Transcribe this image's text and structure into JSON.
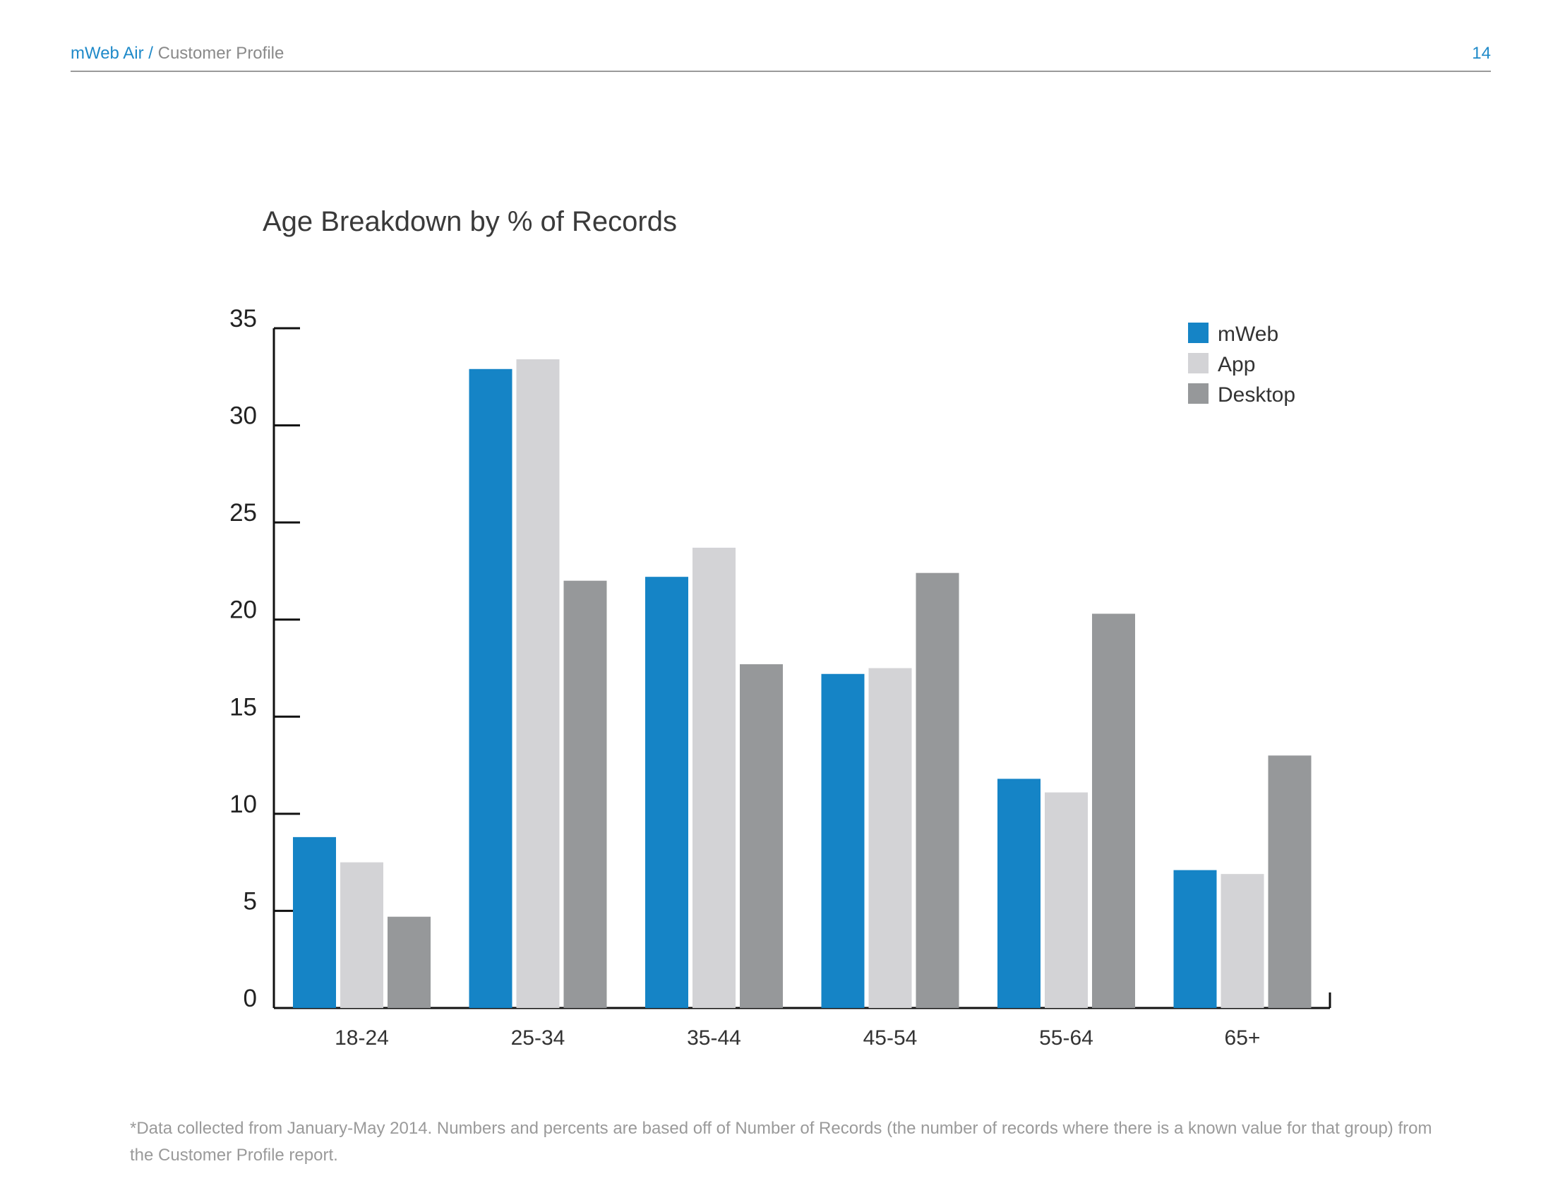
{
  "header": {
    "brand": "mWeb Air",
    "separator": "/",
    "section": "Customer Profile",
    "page_number": "14"
  },
  "footnote": "*Data collected from January-May 2014. Numbers and percents are based off of Number of Records (the number of records where there is a known value for that group) from the Customer Profile report.",
  "colors": {
    "mweb": "#1584c6",
    "app": "#d3d3d6",
    "desktop": "#96989a",
    "accent": "#1f8ac9"
  },
  "chart_data": {
    "type": "bar",
    "title": "Age Breakdown by % of Records",
    "xlabel": "",
    "ylabel": "",
    "ylim": [
      0,
      35
    ],
    "yticks": [
      0,
      5,
      10,
      15,
      20,
      25,
      30,
      35
    ],
    "grid": false,
    "legend_position": "top-right",
    "categories": [
      "18-24",
      "25-34",
      "35-44",
      "45-54",
      "55-64",
      "65+"
    ],
    "series": [
      {
        "name": "mWeb",
        "color": "#1584c6",
        "values": [
          8.8,
          32.9,
          22.2,
          17.2,
          11.8,
          7.1
        ]
      },
      {
        "name": "App",
        "color": "#d3d3d6",
        "values": [
          7.5,
          33.4,
          23.7,
          17.5,
          11.1,
          6.9
        ]
      },
      {
        "name": "Desktop",
        "color": "#96989a",
        "values": [
          4.7,
          22.0,
          17.7,
          22.4,
          20.3,
          13.0
        ]
      }
    ]
  }
}
